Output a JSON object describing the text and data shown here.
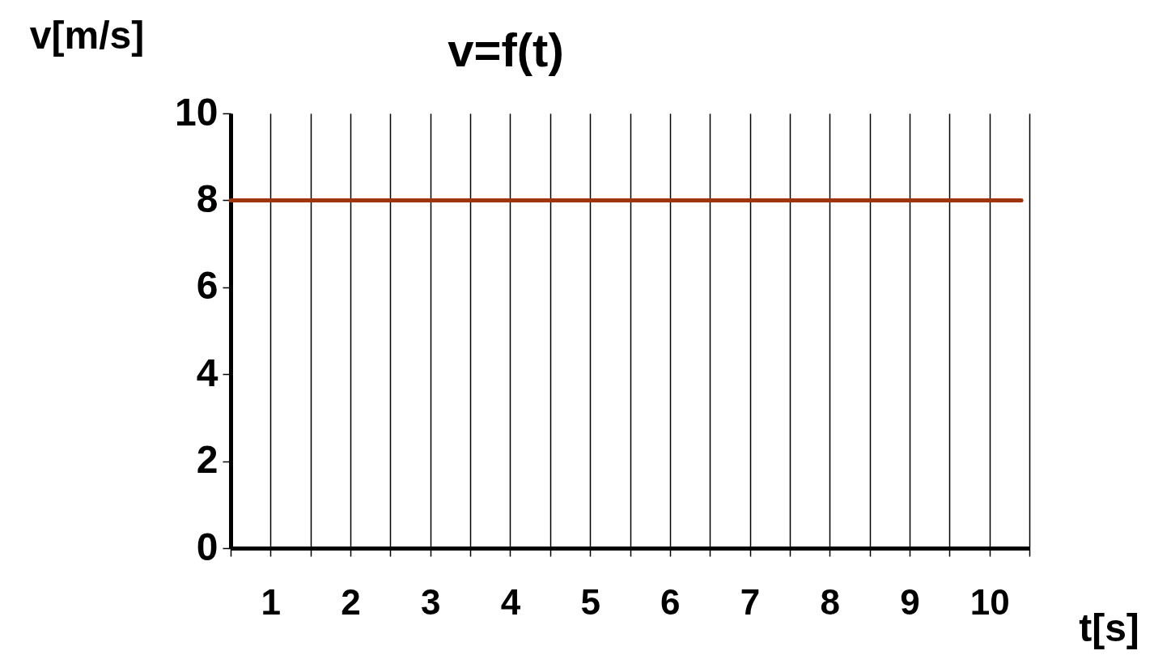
{
  "chart_data": {
    "type": "line",
    "title": "v=f(t)",
    "xlabel": "t[s]",
    "ylabel": "v[m/s]",
    "xlim": [
      0,
      10
    ],
    "xticks": [
      {
        "value": 0,
        "label": null
      },
      {
        "value": 0.5,
        "label": "1"
      },
      {
        "value": 1,
        "label": null
      },
      {
        "value": 1.5,
        "label": "2"
      },
      {
        "value": 2,
        "label": null
      },
      {
        "value": 2.5,
        "label": "3"
      },
      {
        "value": 3,
        "label": null
      },
      {
        "value": 3.5,
        "label": "4"
      },
      {
        "value": 4,
        "label": null
      },
      {
        "value": 4.5,
        "label": "5"
      },
      {
        "value": 5,
        "label": null
      },
      {
        "value": 5.5,
        "label": "6"
      },
      {
        "value": 6,
        "label": null
      },
      {
        "value": 6.5,
        "label": "7"
      },
      {
        "value": 7,
        "label": null
      },
      {
        "value": 7.5,
        "label": "8"
      },
      {
        "value": 8,
        "label": null
      },
      {
        "value": 8.5,
        "label": "9"
      },
      {
        "value": 9,
        "label": null
      },
      {
        "value": 9.5,
        "label": "10"
      },
      {
        "value": 10,
        "label": null
      }
    ],
    "ylim": [
      0,
      10
    ],
    "yticks": [
      0,
      2,
      4,
      6,
      8,
      10
    ],
    "grid": "x",
    "series": [
      {
        "color": "#a0340c",
        "x": [
          0,
          9.9
        ],
        "values": [
          8,
          8
        ]
      }
    ]
  }
}
